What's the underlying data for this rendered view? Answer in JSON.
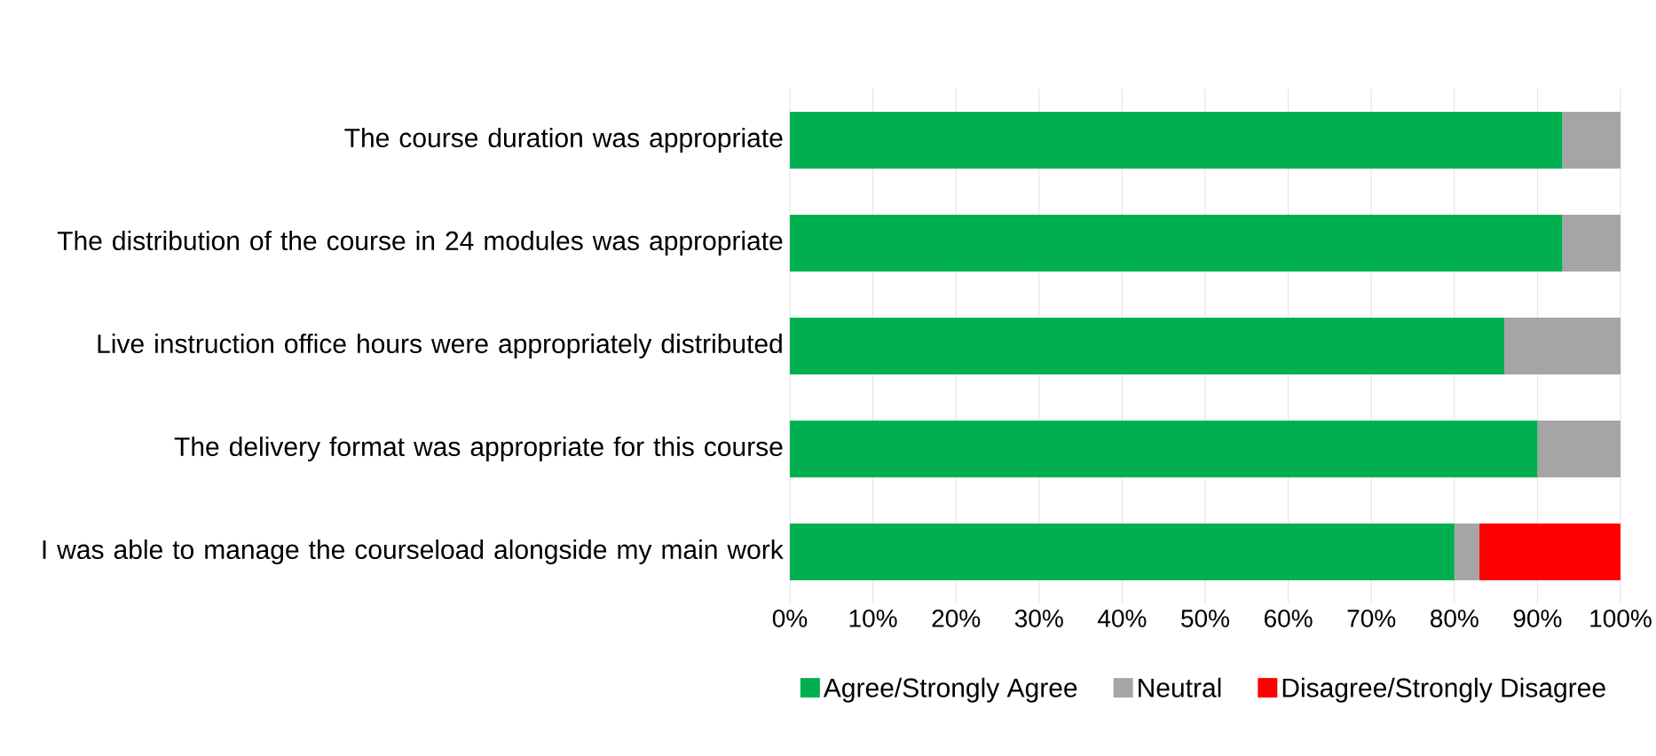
{
  "chart_data": {
    "type": "bar",
    "orientation": "horizontal",
    "stacked": true,
    "categories": [
      "The course duration was appropriate",
      "The distribution of the course in 24 modules was appropriate",
      "Live instruction office hours were appropriately distributed",
      "The delivery format was appropriate for this course",
      "I was able to manage the courseload alongside my main work"
    ],
    "series": [
      {
        "name": "Agree/Strongly Agree",
        "color": "#00b050",
        "values": [
          93,
          93,
          86,
          90,
          80
        ]
      },
      {
        "name": "Neutral",
        "color": "#a5a5a5",
        "values": [
          7,
          7,
          14,
          10,
          3
        ]
      },
      {
        "name": "Disagree/Strongly Disagree",
        "color": "#ff0000",
        "values": [
          0,
          0,
          0,
          0,
          17
        ]
      }
    ],
    "xlim": [
      0,
      100
    ],
    "xticks": [
      {
        "value": 0,
        "label": "0%"
      },
      {
        "value": 10,
        "label": "10%"
      },
      {
        "value": 20,
        "label": "20%"
      },
      {
        "value": 30,
        "label": "30%"
      },
      {
        "value": 40,
        "label": "40%"
      },
      {
        "value": 50,
        "label": "50%"
      },
      {
        "value": 60,
        "label": "60%"
      },
      {
        "value": 70,
        "label": "70%"
      },
      {
        "value": 80,
        "label": "80%"
      },
      {
        "value": 90,
        "label": "90%"
      },
      {
        "value": 100,
        "label": "100%"
      }
    ],
    "grid": "x",
    "legend": "bottom"
  }
}
